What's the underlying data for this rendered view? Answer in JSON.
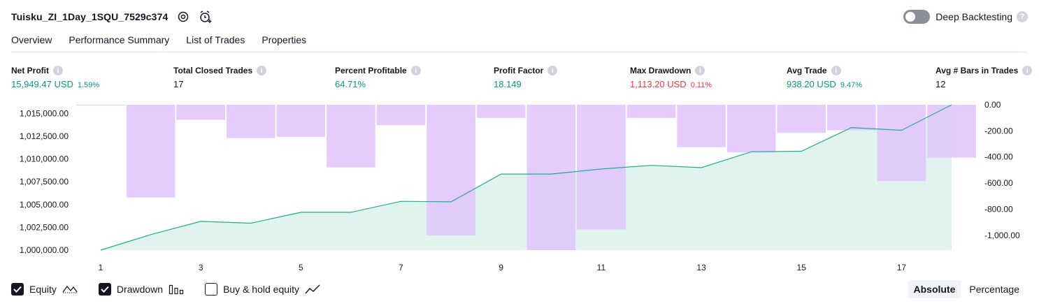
{
  "header": {
    "title": "Tuisku_ZI_1Day_1SQU_7529c374",
    "settings_icon": "gear-icon",
    "alert_icon": "alarm-clock-plus-icon",
    "deep_backtesting_label": "Deep Backtesting",
    "deep_backtesting_enabled": false,
    "help_glyph": "?"
  },
  "tabs": [
    {
      "label": "Overview",
      "active": true
    },
    {
      "label": "Performance Summary",
      "active": false
    },
    {
      "label": "List of Trades",
      "active": false
    },
    {
      "label": "Properties",
      "active": false
    }
  ],
  "metrics": {
    "net_profit": {
      "label": "Net Profit",
      "value": "15,949.47 USD",
      "percent": "1.59%"
    },
    "total_closed_trades": {
      "label": "Total Closed Trades",
      "value": "17"
    },
    "percent_profitable": {
      "label": "Percent Profitable",
      "value": "64.71%"
    },
    "profit_factor": {
      "label": "Profit Factor",
      "value": "18.149"
    },
    "max_drawdown": {
      "label": "Max Drawdown",
      "value": "1,113.20 USD",
      "percent": "0.11%"
    },
    "avg_trade": {
      "label": "Avg Trade",
      "value": "938.20 USD",
      "percent": "9.47%"
    },
    "avg_bars": {
      "label": "Avg # Bars in Trades",
      "value": "12"
    }
  },
  "chart_data": {
    "type": "line",
    "x": [
      1,
      2,
      3,
      4,
      5,
      6,
      7,
      8,
      9,
      10,
      11,
      12,
      13,
      14,
      15,
      16,
      17,
      18
    ],
    "x_ticks": [
      "1",
      "3",
      "5",
      "7",
      "9",
      "11",
      "13",
      "15",
      "17"
    ],
    "series": [
      {
        "name": "Equity",
        "axis": "left",
        "type": "area",
        "values": [
          1000000,
          1001700,
          1003150,
          1002950,
          1004150,
          1004150,
          1005350,
          1005300,
          1008350,
          1008350,
          1008900,
          1009300,
          1009050,
          1010800,
          1010850,
          1013450,
          1013150,
          1015949.47
        ]
      },
      {
        "name": "Drawdown",
        "axis": "right",
        "type": "bar",
        "values": [
          0,
          -710,
          -115,
          -255,
          -245,
          -480,
          -155,
          -1000,
          -100,
          -1113.2,
          -955,
          -100,
          -325,
          -365,
          -215,
          -195,
          -585,
          -405
        ]
      }
    ],
    "left_axis": {
      "ticks": [
        "1,015,000.00",
        "1,012,500.00",
        "1,010,000.00",
        "1,007,500.00",
        "1,005,000.00",
        "1,002,500.00",
        "1,000,000.00"
      ],
      "ylim": [
        1000000,
        1015949.47
      ]
    },
    "right_axis": {
      "ticks": [
        "0.00",
        "-200.00",
        "-400.00",
        "-600.00",
        "-800.00",
        "-1,000.00"
      ],
      "ylim": [
        -1113.2,
        0
      ]
    },
    "colors": {
      "equity_line": "#22ab94",
      "equity_fill": "#e0f3ef",
      "drawdown_bar": "#e1c3fd",
      "drawdown_overlap": "#bab6ec"
    }
  },
  "legend": [
    {
      "label": "Equity",
      "checked": true,
      "icon": "equity-line-icon"
    },
    {
      "label": "Drawdown",
      "checked": true,
      "icon": "bar-chart-icon"
    },
    {
      "label": "Buy & hold equity",
      "checked": false,
      "icon": "trend-line-icon"
    }
  ],
  "mode": {
    "absolute_label": "Absolute",
    "percentage_label": "Percentage",
    "selected": "Absolute"
  }
}
